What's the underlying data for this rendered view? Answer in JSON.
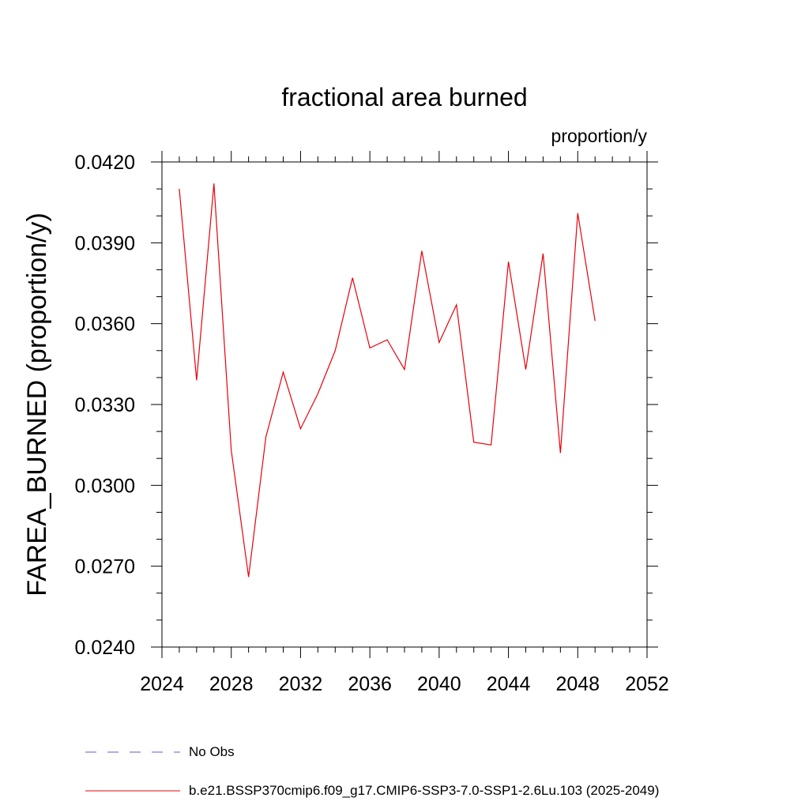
{
  "chart_data": {
    "type": "line",
    "title": "fractional area burned",
    "units_label": "proportion/y",
    "ylabel": "FAREA_BURNED  (proportion/y)",
    "xlabel": "",
    "xlim": [
      2024,
      2052
    ],
    "ylim": [
      0.024,
      0.042
    ],
    "x_ticks": [
      2024,
      2028,
      2032,
      2036,
      2040,
      2044,
      2048,
      2052
    ],
    "x_tick_labels": [
      "2024",
      "2028",
      "2032",
      "2036",
      "2040",
      "2044",
      "2048",
      "2052"
    ],
    "y_ticks": [
      0.024,
      0.027,
      0.03,
      0.033,
      0.036,
      0.039,
      0.042
    ],
    "y_tick_labels": [
      "0.0240",
      "0.0270",
      "0.0300",
      "0.0330",
      "0.0360",
      "0.0390",
      "0.0420"
    ],
    "x_minor_step": 1,
    "y_minor_step": 0.001,
    "grid": false,
    "series": [
      {
        "name": "b.e21.BSSP370cmip6.f09_g17.CMIP6-SSP3-7.0-SSP1-2.6Lu.103 (2025-2049)",
        "color": "#e8000b",
        "x": [
          2025,
          2026,
          2027,
          2028,
          2029,
          2030,
          2031,
          2032,
          2033,
          2034,
          2035,
          2036,
          2037,
          2038,
          2039,
          2040,
          2041,
          2042,
          2043,
          2044,
          2045,
          2046,
          2047,
          2048,
          2049
        ],
        "values": [
          0.041,
          0.0339,
          0.0412,
          0.0313,
          0.0266,
          0.0318,
          0.0342,
          0.0321,
          0.0334,
          0.035,
          0.0377,
          0.0351,
          0.0354,
          0.0343,
          0.0387,
          0.0353,
          0.0367,
          0.0316,
          0.0315,
          0.0383,
          0.0343,
          0.0386,
          0.0312,
          0.0401,
          0.0361
        ]
      }
    ],
    "legend": [
      {
        "label": "No Obs",
        "style": "dashed",
        "color": "#6a5acd"
      },
      {
        "label": "b.e21.BSSP370cmip6.f09_g17.CMIP6-SSP3-7.0-SSP1-2.6Lu.103 (2025-2049)",
        "style": "solid",
        "color": "#e8000b"
      }
    ]
  }
}
